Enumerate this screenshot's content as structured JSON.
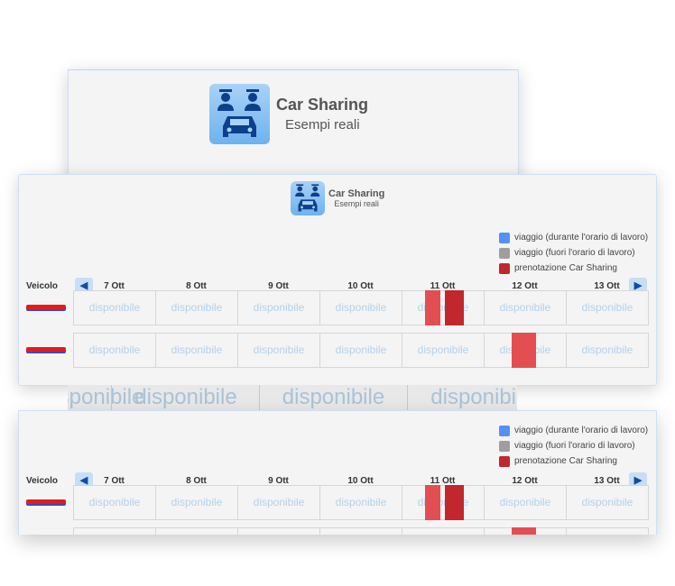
{
  "header": {
    "title": "Car Sharing",
    "subtitle": "Esempi reali"
  },
  "legend": [
    {
      "label": "viaggio (durante l'orario di lavoro)",
      "color": "#5591f5"
    },
    {
      "label": "viaggio (fuori l'orario di lavoro)",
      "color": "#9e9e9e"
    },
    {
      "label": "prenotazione Car Sharing",
      "color": "#c1272d"
    }
  ],
  "scheduler": {
    "vehicle_label": "Veicolo",
    "days": [
      "7 Ott",
      "8 Ott",
      "9 Ott",
      "10 Ott",
      "11 Ott",
      "12 Ott",
      "13 Ott"
    ],
    "cell_label": "disponibile",
    "rows": [
      {
        "bookings": [
          {
            "day": 4,
            "start": 0.29,
            "end": 0.47,
            "color": "#e34e52"
          },
          {
            "day": 4,
            "start": 0.53,
            "end": 0.76,
            "color": "#c1272d"
          }
        ]
      },
      {
        "bookings": [
          {
            "day": 5,
            "start": 0.34,
            "end": 0.64,
            "color": "#e34e52"
          }
        ]
      }
    ]
  },
  "colors": {
    "accent": "#0d4ea3",
    "cell_text": "#b3d1ea"
  }
}
